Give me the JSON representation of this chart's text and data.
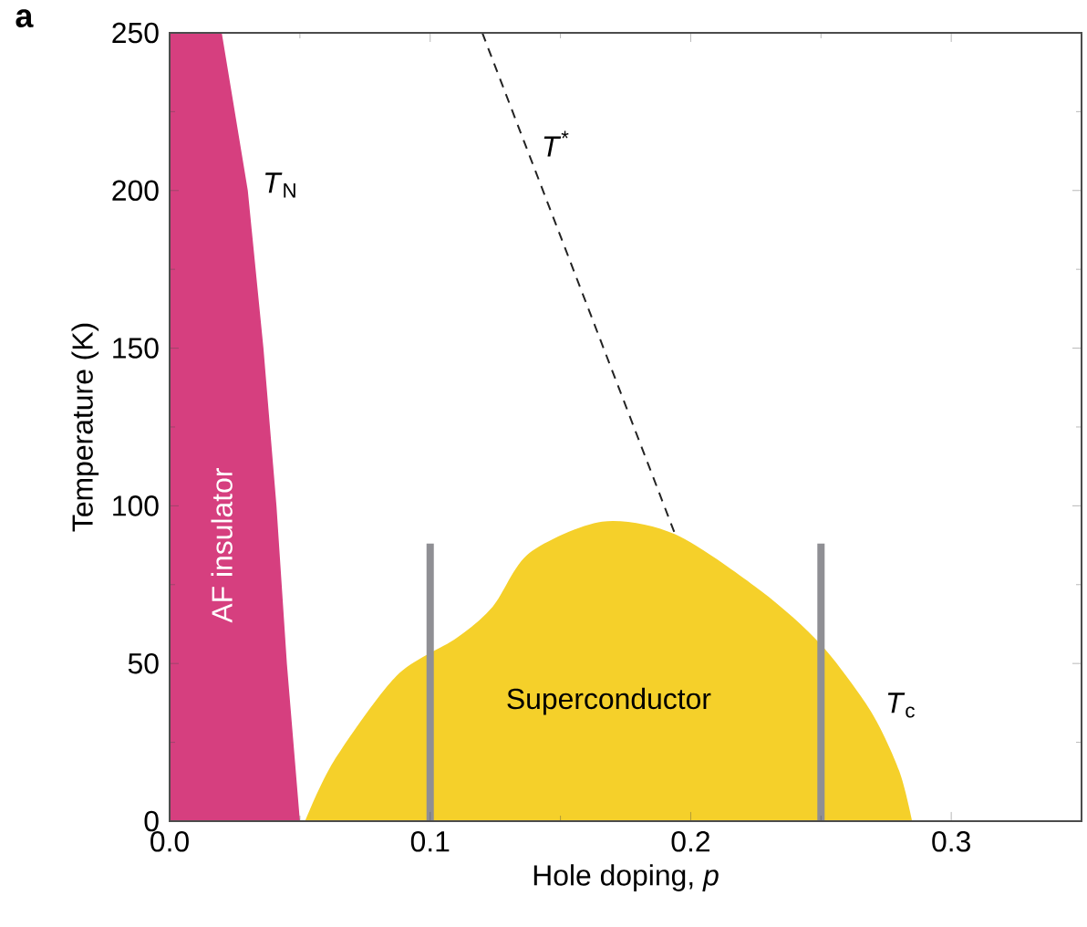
{
  "chart_data": {
    "type": "area",
    "xlabel": "Hole doping, *p*",
    "ylabel": "Temperature (K)",
    "xlim": [
      0,
      0.35
    ],
    "ylim": [
      0,
      250
    ],
    "xticks": [
      {
        "value": 0,
        "label": "0.0"
      },
      {
        "value": 0.1,
        "label": "0.1"
      },
      {
        "value": 0.2,
        "label": "0.2"
      },
      {
        "value": 0.3,
        "label": "0.3"
      }
    ],
    "yticks": [
      0,
      50,
      100,
      150,
      200,
      250
    ],
    "series": [
      {
        "color": "#d63f7f",
        "x": [
          0,
          0.02,
          0.03,
          0.036,
          0.041,
          0.045,
          0.05
        ],
        "values": [
          250,
          250,
          200,
          150,
          100,
          50,
          0
        ]
      },
      {
        "color": "#f5d02a",
        "x": [
          0.052,
          0.063,
          0.087,
          0.11,
          0.124,
          0.138,
          0.166,
          0.194,
          0.227,
          0.25,
          0.269,
          0.28,
          0.285
        ],
        "values": [
          0,
          19,
          46,
          58,
          68,
          85,
          95,
          91,
          73,
          56,
          35,
          16,
          0
        ]
      },
      {
        "type": "line",
        "color": "#8f8f94",
        "x": [
          0.1,
          0.1
        ],
        "values": [
          0,
          88
        ]
      },
      {
        "type": "line",
        "color": "#8f8f94",
        "x": [
          0.25,
          0.25
        ],
        "values": [
          0,
          88
        ]
      },
      {
        "type": "line",
        "color": "#222222",
        "line_style": "dashed",
        "x": [
          0.12,
          0.194
        ],
        "values": [
          250,
          91
        ]
      }
    ],
    "annotations": [
      "a",
      {
        "text": "*T*$_{N}$",
        "x": 0.03,
        "y": 200
      },
      {
        "text": "*T*$^{*}$",
        "x": 0.137,
        "y": 213
      },
      "AF insulator",
      "Superconductor",
      {
        "text": "*T*$_{c}$",
        "x": 0.269,
        "y": 35
      }
    ]
  }
}
